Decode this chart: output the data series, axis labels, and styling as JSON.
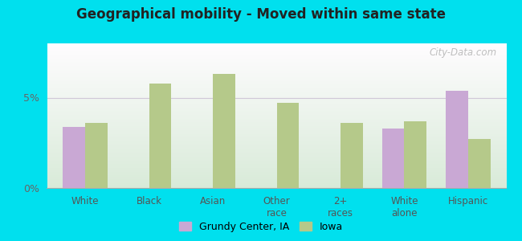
{
  "title": "Geographical mobility - Moved within same state",
  "categories": [
    "White",
    "Black",
    "Asian",
    "Other\nrace",
    "2+\nraces",
    "White\nalone",
    "Hispanic"
  ],
  "grundy_values": [
    3.4,
    0.0,
    0.0,
    0.0,
    0.0,
    3.3,
    5.4
  ],
  "iowa_values": [
    3.6,
    5.8,
    6.3,
    4.7,
    3.6,
    3.7,
    2.7
  ],
  "grundy_color": "#c9a8d4",
  "iowa_color": "#b5c98a",
  "bar_width": 0.35,
  "ylim": [
    0,
    8
  ],
  "yticks": [
    0,
    5
  ],
  "ytick_labels": [
    "0%",
    "5%"
  ],
  "outer_bg": "#00e0ee",
  "legend_grundy": "Grundy Center, IA",
  "legend_iowa": "Iowa",
  "watermark": "City-Data.com",
  "grid_color": "#e0e8d8",
  "axis_color": "#aaaaaa"
}
